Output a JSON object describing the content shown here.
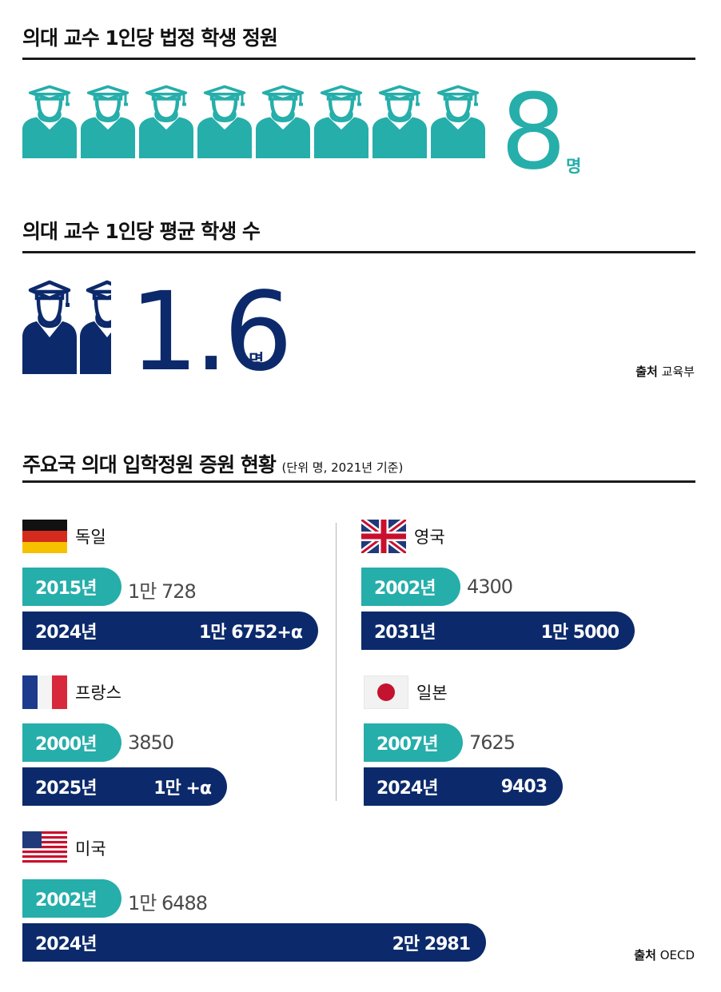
{
  "section1": {
    "title": "의대 교수 1인당 법정 학생 정원",
    "value": "8",
    "unit": "명",
    "icon_count": 8,
    "color": "#26aeaa"
  },
  "section2": {
    "title": "의대 교수 1인당 평균 학생 수",
    "value": "1.6",
    "unit": "명",
    "color": "#0c2a6b"
  },
  "source1": {
    "label": "출처",
    "text": "교육부"
  },
  "section3": {
    "title": "주요국 의대 입학정원 증원 현황",
    "note": "(단위 명, 2021년 기준)"
  },
  "source2": {
    "label": "출처",
    "text": "OECD"
  },
  "icons": {
    "person": "graduate-icon",
    "flags": [
      "germany-flag-icon",
      "uk-flag-icon",
      "france-flag-icon",
      "japan-flag-icon",
      "usa-flag-icon"
    ]
  },
  "colors": {
    "teal": "#26aeaa",
    "navy": "#0c2a6b"
  },
  "chart_data": [
    {
      "type": "pictogram",
      "title": "의대 교수 1인당 법정 학생 정원",
      "value": 8,
      "unit": "명"
    },
    {
      "type": "pictogram",
      "title": "의대 교수 1인당 평균 학생 수",
      "value": 1.6,
      "unit": "명"
    },
    {
      "type": "bar",
      "title": "주요국 의대 입학정원 증원 현황",
      "note": "(단위 명, 2021년 기준)",
      "countries": [
        {
          "name": "독일",
          "before_year": "2015년",
          "before_label": "1만 728",
          "before_value": 10728,
          "after_year": "2024년",
          "after_label": "1만 6752+α",
          "after_value": 16752
        },
        {
          "name": "영국",
          "before_year": "2002년",
          "before_label": "4300",
          "before_value": 4300,
          "after_year": "2031년",
          "after_label": "1만 5000",
          "after_value": 15000
        },
        {
          "name": "프랑스",
          "before_year": "2000년",
          "before_label": "3850",
          "before_value": 3850,
          "after_year": "2025년",
          "after_label": "1만 +α",
          "after_value": 10000
        },
        {
          "name": "일본",
          "before_year": "2007년",
          "before_label": "7625",
          "before_value": 7625,
          "after_year": "2024년",
          "after_label": "9403",
          "after_value": 9403
        },
        {
          "name": "미국",
          "before_year": "2002년",
          "before_label": "1만 6488",
          "before_value": 16488,
          "after_year": "2024년",
          "after_label": "2만 2981",
          "after_value": 22981
        }
      ]
    }
  ]
}
